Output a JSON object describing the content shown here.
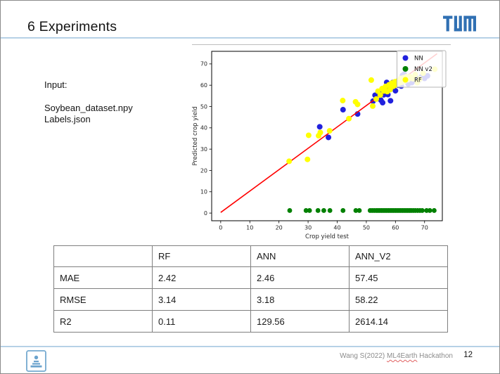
{
  "slide": {
    "title": "6 Experiments"
  },
  "logo": {
    "name": "TUM",
    "color": "#3070b3"
  },
  "input_block": {
    "label": "Input:",
    "files": [
      "Soybean_dataset.npy",
      "Labels.json"
    ]
  },
  "chart_data": {
    "type": "scatter",
    "xlabel": "Crop yield test",
    "ylabel": "Predicted crop yield",
    "xticks": [
      0,
      10,
      20,
      30,
      40,
      50,
      60,
      70
    ],
    "yticks": [
      0,
      10,
      20,
      30,
      40,
      50,
      60,
      70
    ],
    "xlim": [
      -3.1,
      76.1
    ],
    "ylim": [
      -3.6,
      75.9
    ],
    "grid": false,
    "legend_position": "upper right",
    "identity_line": {
      "color": "#ff0000",
      "from": [
        0,
        0.3
      ],
      "to": [
        74.3,
        74.8
      ]
    },
    "series": [
      {
        "name": "NN",
        "color": "#2121dd",
        "marker_radius": 4,
        "points": [
          [
            34,
            40.5
          ],
          [
            37,
            35.5
          ],
          [
            42,
            48.5
          ],
          [
            47,
            46.5
          ],
          [
            52.3,
            52.5
          ],
          [
            53,
            55.3
          ],
          [
            54.5,
            56.5
          ],
          [
            55,
            53
          ],
          [
            55.6,
            51.8
          ],
          [
            56,
            55.5
          ],
          [
            56.5,
            57
          ],
          [
            57,
            61.3
          ],
          [
            57.4,
            55.6
          ],
          [
            58,
            58.4
          ],
          [
            58.3,
            52.7
          ],
          [
            58.6,
            58.6
          ],
          [
            59,
            61.2
          ],
          [
            59.4,
            59.4
          ],
          [
            60,
            57.4
          ],
          [
            60.4,
            61.4
          ],
          [
            61,
            60
          ],
          [
            61.5,
            62.4
          ],
          [
            62,
            59.6
          ],
          [
            62.4,
            64.6
          ],
          [
            62.7,
            62
          ],
          [
            63,
            65.2
          ],
          [
            63.2,
            62.5
          ],
          [
            63.6,
            61.8
          ],
          [
            64,
            63
          ],
          [
            64.4,
            60.6
          ],
          [
            65,
            63.4
          ],
          [
            65.6,
            61.2
          ],
          [
            66.4,
            62
          ],
          [
            67,
            63.5
          ],
          [
            68,
            62.4
          ],
          [
            69,
            64
          ],
          [
            70,
            63.2
          ],
          [
            71,
            64.4
          ]
        ]
      },
      {
        "name": "NN v2",
        "color": "#008000",
        "marker_radius": 3.4,
        "points": [
          [
            23.7,
            1.2
          ],
          [
            29.3,
            1.2
          ],
          [
            30.5,
            1.2
          ],
          [
            33.4,
            1.2
          ],
          [
            35.4,
            1.2
          ],
          [
            37.5,
            1.2
          ],
          [
            42,
            1.2
          ],
          [
            46.4,
            1.2
          ],
          [
            47.6,
            1.2
          ],
          [
            51.3,
            1.2
          ],
          [
            52,
            1.2
          ],
          [
            52.7,
            1.2
          ],
          [
            53.4,
            1.2
          ],
          [
            54,
            1.2
          ],
          [
            54.6,
            1.2
          ],
          [
            55.2,
            1.2
          ],
          [
            55.8,
            1.2
          ],
          [
            56.4,
            1.2
          ],
          [
            57,
            1.2
          ],
          [
            57.6,
            1.2
          ],
          [
            58.2,
            1.2
          ],
          [
            58.8,
            1.2
          ],
          [
            59.4,
            1.2
          ],
          [
            60,
            1.2
          ],
          [
            60.6,
            1.2
          ],
          [
            61.2,
            1.2
          ],
          [
            61.8,
            1.2
          ],
          [
            62.4,
            1.2
          ],
          [
            63,
            1.2
          ],
          [
            63.6,
            1.2
          ],
          [
            64.2,
            1.2
          ],
          [
            64.8,
            1.2
          ],
          [
            65.4,
            1.2
          ],
          [
            66.1,
            1.2
          ],
          [
            66.8,
            1.2
          ],
          [
            67.6,
            1.2
          ],
          [
            68.4,
            1.2
          ],
          [
            69.2,
            1.2
          ],
          [
            70.7,
            1.2
          ],
          [
            71.8,
            1.2
          ],
          [
            73.3,
            1.2
          ]
        ]
      },
      {
        "name": "RF",
        "color": "#ffff00",
        "marker_radius": 4,
        "points": [
          [
            23.5,
            24.3
          ],
          [
            29.8,
            25.2
          ],
          [
            30.2,
            36.5
          ],
          [
            33.6,
            36.3
          ],
          [
            34.2,
            37.8
          ],
          [
            37.4,
            38.6
          ],
          [
            41.9,
            52.8
          ],
          [
            44,
            44.3
          ],
          [
            46.3,
            52.2
          ],
          [
            47,
            51
          ],
          [
            51.7,
            62.4
          ],
          [
            52.2,
            50.2
          ],
          [
            53.4,
            53.5
          ],
          [
            54,
            57.2
          ],
          [
            54.8,
            55.4
          ],
          [
            55.4,
            58.4
          ],
          [
            56,
            57.3
          ],
          [
            56.6,
            59.4
          ],
          [
            57.2,
            57
          ],
          [
            57.8,
            60.2
          ],
          [
            58.2,
            58
          ],
          [
            58.8,
            61
          ],
          [
            59.3,
            59.5
          ],
          [
            59.8,
            61.6
          ],
          [
            60.2,
            60.2
          ],
          [
            60.8,
            62
          ],
          [
            61.3,
            61
          ],
          [
            61.8,
            63.2
          ],
          [
            62.2,
            61.4
          ],
          [
            62.8,
            63.5
          ],
          [
            63.2,
            62
          ],
          [
            63.8,
            64
          ],
          [
            64.3,
            62.6
          ],
          [
            65,
            64
          ],
          [
            66,
            63
          ],
          [
            66.8,
            65
          ],
          [
            67.5,
            61.2
          ],
          [
            68.3,
            62.9
          ],
          [
            69.5,
            65.6
          ],
          [
            73.5,
            67.5
          ]
        ]
      }
    ]
  },
  "table": {
    "headers": [
      "",
      "RF",
      "ANN",
      "ANN_V2"
    ],
    "rows": [
      {
        "label": "MAE",
        "values": [
          "2.42",
          "2.46",
          "57.45"
        ]
      },
      {
        "label": "RMSE",
        "values": [
          "3.14",
          "3.18",
          "58.22"
        ]
      },
      {
        "label": "R2",
        "values": [
          "0.11",
          "129.56",
          "2614.14"
        ]
      }
    ]
  },
  "footer": {
    "text_prefix": "Wang S(2022) ",
    "highlighted_word": "ML4Earth",
    "text_suffix": " Hackathon",
    "page_number": "12"
  }
}
